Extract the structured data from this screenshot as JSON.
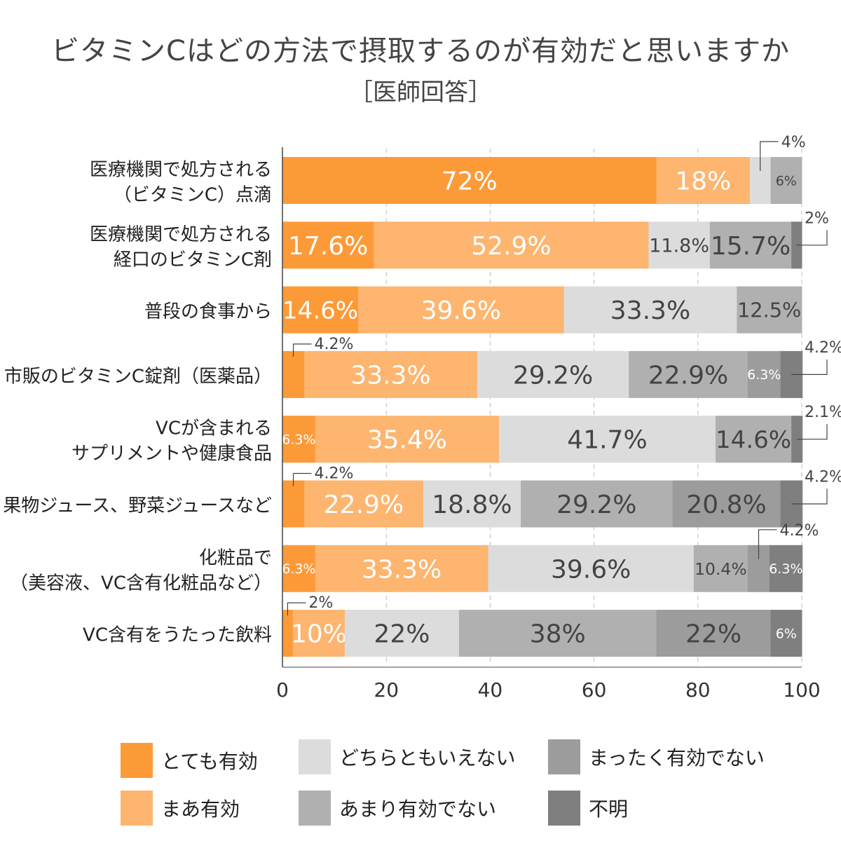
{
  "chart_data": {
    "type": "bar",
    "orientation": "horizontal",
    "stacked": true,
    "title": "ビタミンCはどの方法で摂取するのが有効だと思いますか",
    "subtitle": "［医師回答］",
    "categories": [
      [
        "医療機関で処方される",
        "（ビタミンC）点滴"
      ],
      [
        "医療機関で処方される",
        "経口のビタミンC剤"
      ],
      [
        "普段の食事から"
      ],
      [
        "市販のビタミンC錠剤（医薬品）"
      ],
      [
        "VCが含まれる",
        "サプリメントや健康食品"
      ],
      [
        "果物ジュース、野菜ジュースなど"
      ],
      [
        "化粧品で",
        "（美容液、VC含有化粧品など）"
      ],
      [
        "VC含有をうたった飲料"
      ]
    ],
    "series": [
      {
        "name": "とても有効",
        "color": "#FD9A38",
        "values": [
          72,
          17.6,
          14.6,
          4.2,
          6.3,
          4.2,
          6.3,
          2
        ],
        "labels": [
          "72%",
          "17.6%",
          "14.6%",
          "4.2%",
          "6.3%",
          "4.2%",
          "6.3%",
          "2%"
        ]
      },
      {
        "name": "まあ有効",
        "color": "#FDB56F",
        "values": [
          18,
          52.9,
          39.6,
          33.3,
          35.4,
          22.9,
          33.3,
          10
        ],
        "labels": [
          "18%",
          "52.9%",
          "39.6%",
          "33.3%",
          "35.4%",
          "22.9%",
          "33.3%",
          "10%"
        ]
      },
      {
        "name": "どちらともいえない",
        "color": "#DCDCDC",
        "values": [
          4,
          11.8,
          33.3,
          29.2,
          41.7,
          18.8,
          39.6,
          22
        ],
        "labels": [
          "4%",
          "11.8%",
          "33.3%",
          "29.2%",
          "41.7%",
          "18.8%",
          "39.6%",
          "22%"
        ]
      },
      {
        "name": "あまり有効でない",
        "color": "#B0B0B0",
        "values": [
          6,
          15.7,
          12.5,
          22.9,
          14.6,
          29.2,
          10.4,
          38
        ],
        "labels": [
          "6%",
          "15.7%",
          "12.5%",
          "22.9%",
          "14.6%",
          "29.2%",
          "10.4%",
          "38%"
        ]
      },
      {
        "name": "まったく有効でない",
        "color": "#9C9C9C",
        "values": [
          0,
          0,
          0,
          6.3,
          0,
          20.8,
          4.2,
          22
        ],
        "labels": [
          "",
          "",
          "",
          "6.3%",
          "",
          "20.8%",
          "4.2%",
          "22%"
        ]
      },
      {
        "name": "不明",
        "color": "#7F7F7F",
        "values": [
          0,
          2,
          0,
          4.2,
          2.1,
          4.2,
          6.3,
          6
        ],
        "labels": [
          "",
          "2%",
          "",
          "4.2%",
          "2.1%",
          "4.2%",
          "6.3%",
          "6%"
        ]
      }
    ],
    "xlim": [
      0,
      100
    ],
    "xticks": [
      "0",
      "20",
      "40",
      "60",
      "80",
      "100"
    ],
    "grid": "vertical dashed",
    "legend_placement": "bottom"
  }
}
